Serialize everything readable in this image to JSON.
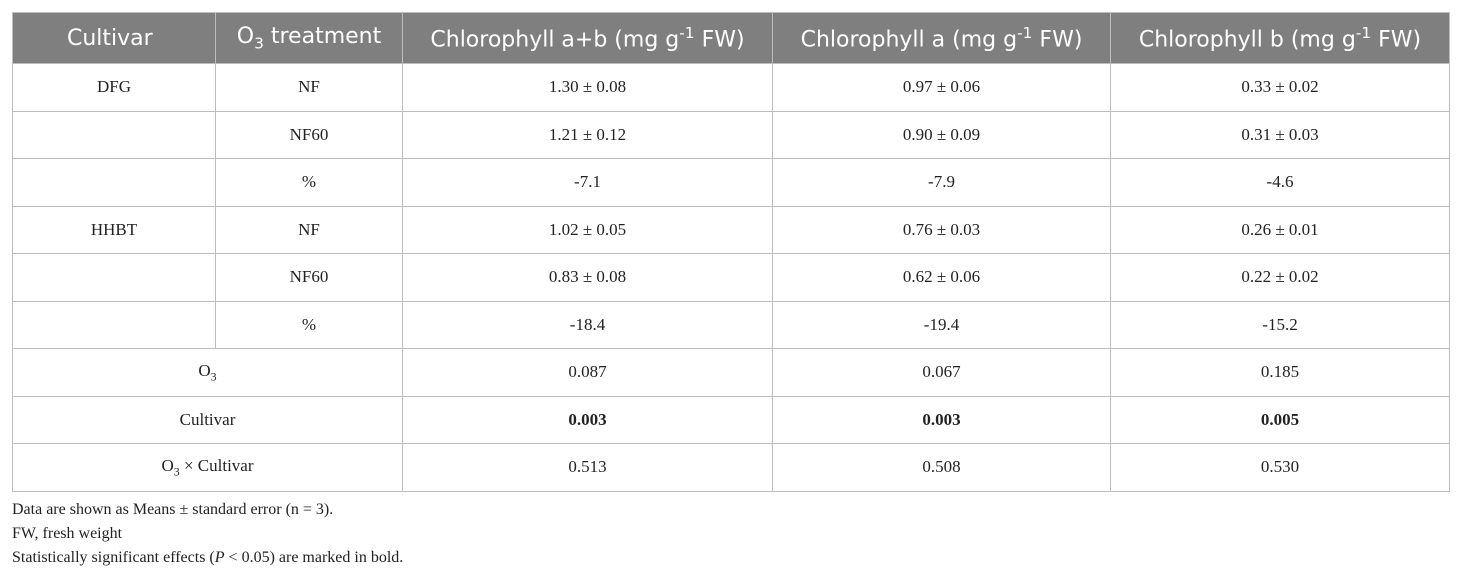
{
  "table": {
    "headers": [
      [
        "Cultivar"
      ],
      [
        "O",
        {
          "sub": "3"
        },
        " treatment"
      ],
      [
        "Chlorophyll a+b (mg g",
        {
          "sup": "-1"
        },
        " FW)"
      ],
      [
        "Chlorophyll a (mg g",
        {
          "sup": "-1"
        },
        " FW)"
      ],
      [
        "Chlorophyll b (mg g",
        {
          "sup": "-1"
        },
        " FW)"
      ]
    ],
    "rows": [
      {
        "cultivar": "DFG",
        "treatment": "NF",
        "values": [
          "1.30 ± 0.08",
          "0.97 ± 0.06",
          "0.33 ± 0.02"
        ]
      },
      {
        "treatment": "NF60",
        "values": [
          "1.21 ± 0.12",
          "0.90 ± 0.09",
          "0.31 ± 0.03"
        ]
      },
      {
        "treatment": "%",
        "values": [
          "-7.1",
          "-7.9",
          "-4.6"
        ]
      },
      {
        "cultivar": "HHBT",
        "treatment": "NF",
        "values": [
          "1.02 ± 0.05",
          "0.76 ± 0.03",
          "0.26 ± 0.01"
        ]
      },
      {
        "treatment": "NF60",
        "values": [
          "0.83 ± 0.08",
          "0.62 ± 0.06",
          "0.22 ± 0.02"
        ]
      },
      {
        "treatment": "%",
        "values": [
          "-18.4",
          "-19.4",
          "-15.2"
        ]
      },
      {
        "effect": [
          "O",
          {
            "sub": "3"
          }
        ],
        "values": [
          "0.087",
          "0.067",
          "0.185"
        ]
      },
      {
        "effect": [
          "Cultivar"
        ],
        "values": [
          "0.003",
          "0.003",
          "0.005"
        ],
        "bold": true
      },
      {
        "effect": [
          "O",
          {
            "sub": "3"
          },
          " × Cultivar"
        ],
        "values": [
          "0.513",
          "0.508",
          "0.530"
        ]
      }
    ]
  },
  "footnotes": [
    [
      "Data are shown as Means ± standard error (n = 3)."
    ],
    [
      "FW, fresh weight"
    ],
    [
      "Statistically significant effects (",
      {
        "i": "P"
      },
      " < 0.05) are marked in bold."
    ]
  ]
}
